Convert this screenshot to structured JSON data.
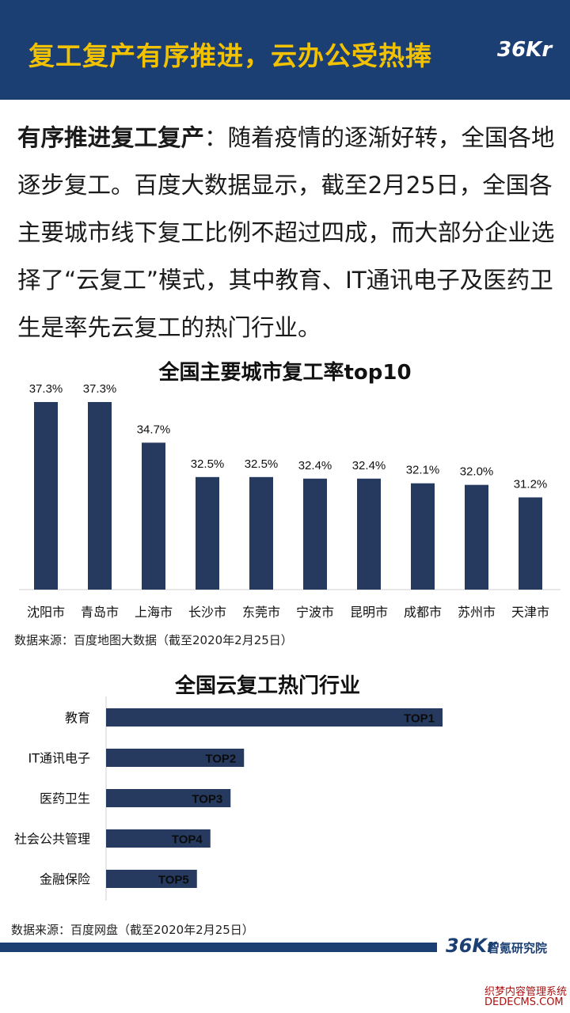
{
  "header": {
    "title": "复工复产有序推进，云办公受热捧",
    "logo": "36Kr"
  },
  "intro": {
    "lead": "有序推进复工复产",
    "body": "：随着疫情的逐渐好转，全国各地逐步复工。百度大数据显示，截至2月25日，全国各主要城市线下复工比例不超过四成，而大部分企业选择了“云复工”模式，其中教育、IT通讯电子及医药卫生是率先云复工的热门行业。"
  },
  "colors": {
    "header_bg": "#1c3f73",
    "title_yellow": "#f2c200",
    "bar": "#253a5e"
  },
  "chart_data": [
    {
      "type": "bar",
      "title": "全国主要城市复工率top10",
      "categories": [
        "沈阳市",
        "青岛市",
        "上海市",
        "长沙市",
        "东莞市",
        "宁波市",
        "昆明市",
        "成都市",
        "苏州市",
        "天津市"
      ],
      "values": [
        37.3,
        37.3,
        34.7,
        32.5,
        32.5,
        32.4,
        32.4,
        32.1,
        32.0,
        31.2
      ],
      "value_labels": [
        "37.3%",
        "37.3%",
        "34.7%",
        "32.5%",
        "32.5%",
        "32.4%",
        "32.4%",
        "32.1%",
        "32.0%",
        "31.2%"
      ],
      "unit": "%",
      "source": "数据来源：百度地图大数据（截至2020年2月25日）"
    },
    {
      "type": "bar",
      "orientation": "horizontal",
      "title": "全国云复工热门行业",
      "categories": [
        "教育",
        "IT通讯电子",
        "医药卫生",
        "社会公共管理",
        "金融保险"
      ],
      "ranks": [
        1,
        2,
        3,
        4,
        5
      ],
      "rank_labels": [
        "TOP1",
        "TOP2",
        "TOP3",
        "TOP4",
        "TOP5"
      ],
      "relative_values": [
        1.0,
        0.41,
        0.37,
        0.31,
        0.27
      ],
      "source": "数据来源：百度网盘（截至2020年2月25日）"
    }
  ],
  "footer": {
    "logo": "36Kr",
    "brand": "智氪研究院"
  },
  "watermark": {
    "line1": "织梦内容管理系统",
    "line2": "DEDECMS.COM"
  }
}
